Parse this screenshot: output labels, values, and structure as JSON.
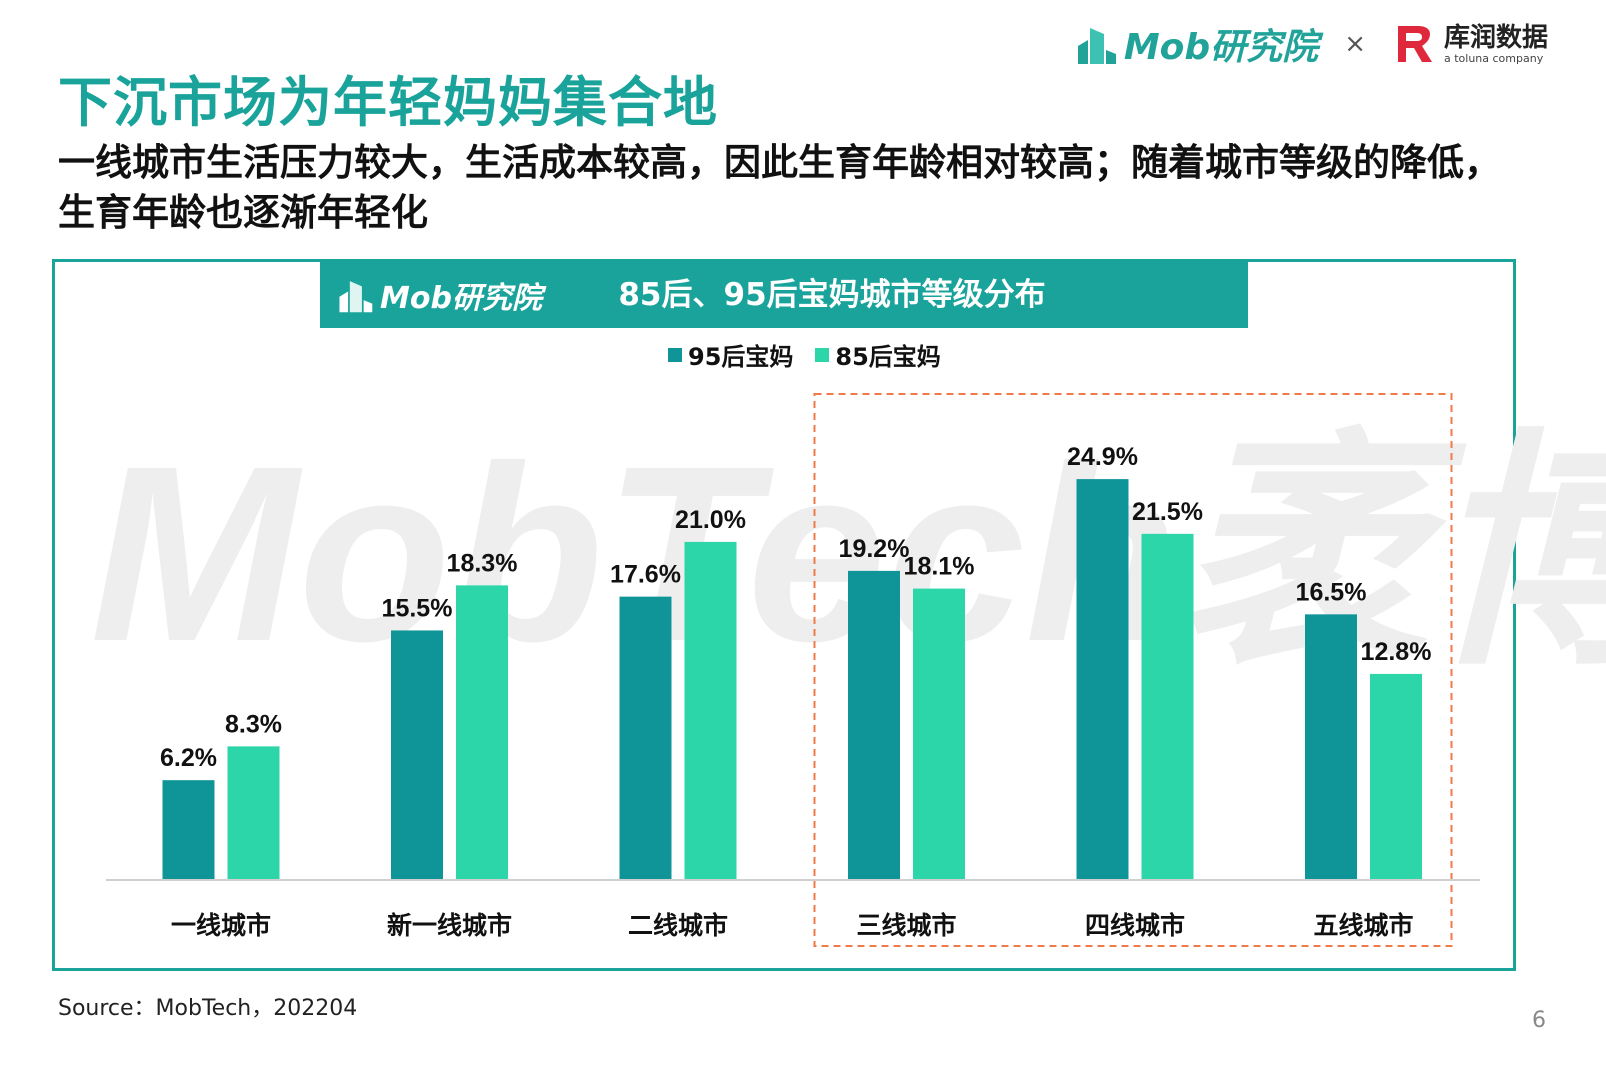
{
  "slide": {
    "title": "下沉市场为年轻妈妈集合地",
    "subtitle": "一线城市生活压力较大，生活成本较高，因此生育年龄相对较高；随着城市等级的降低，生育年龄也逐渐年轻化",
    "source": "Source：MobTech，202204",
    "page_number": "6"
  },
  "brands": {
    "mob": "Mob研究院",
    "times": "×",
    "kurun_name": "库润数据",
    "kurun_tagline": "a toluna company"
  },
  "colors": {
    "accent": "#1aa39a",
    "series_95": "#0f9598",
    "series_85": "#2dd6a9",
    "highlight_box": "#f07a4a"
  },
  "watermark": "MobTech袤博",
  "chart_data": {
    "type": "bar",
    "title": "85后、95后宝妈城市等级分布",
    "categories": [
      "一线城市",
      "新一线城市",
      "二线城市",
      "三线城市",
      "四线城市",
      "五线城市"
    ],
    "series": [
      {
        "name": "95后宝妈",
        "values": [
          6.2,
          15.5,
          17.6,
          19.2,
          24.9,
          16.5
        ],
        "labels": [
          "6.2%",
          "15.5%",
          "17.6%",
          "19.2%",
          "24.9%",
          "16.5%"
        ]
      },
      {
        "name": "85后宝妈",
        "values": [
          8.3,
          18.3,
          21.0,
          18.1,
          21.5,
          12.8
        ],
        "labels": [
          "8.3%",
          "18.3%",
          "21.0%",
          "18.1%",
          "21.5%",
          "12.8%"
        ]
      }
    ],
    "ylim": [
      0,
      30
    ],
    "legend_position": "top-center",
    "grid": false,
    "highlighted_categories": [
      "三线城市",
      "四线城市",
      "五线城市"
    ]
  }
}
